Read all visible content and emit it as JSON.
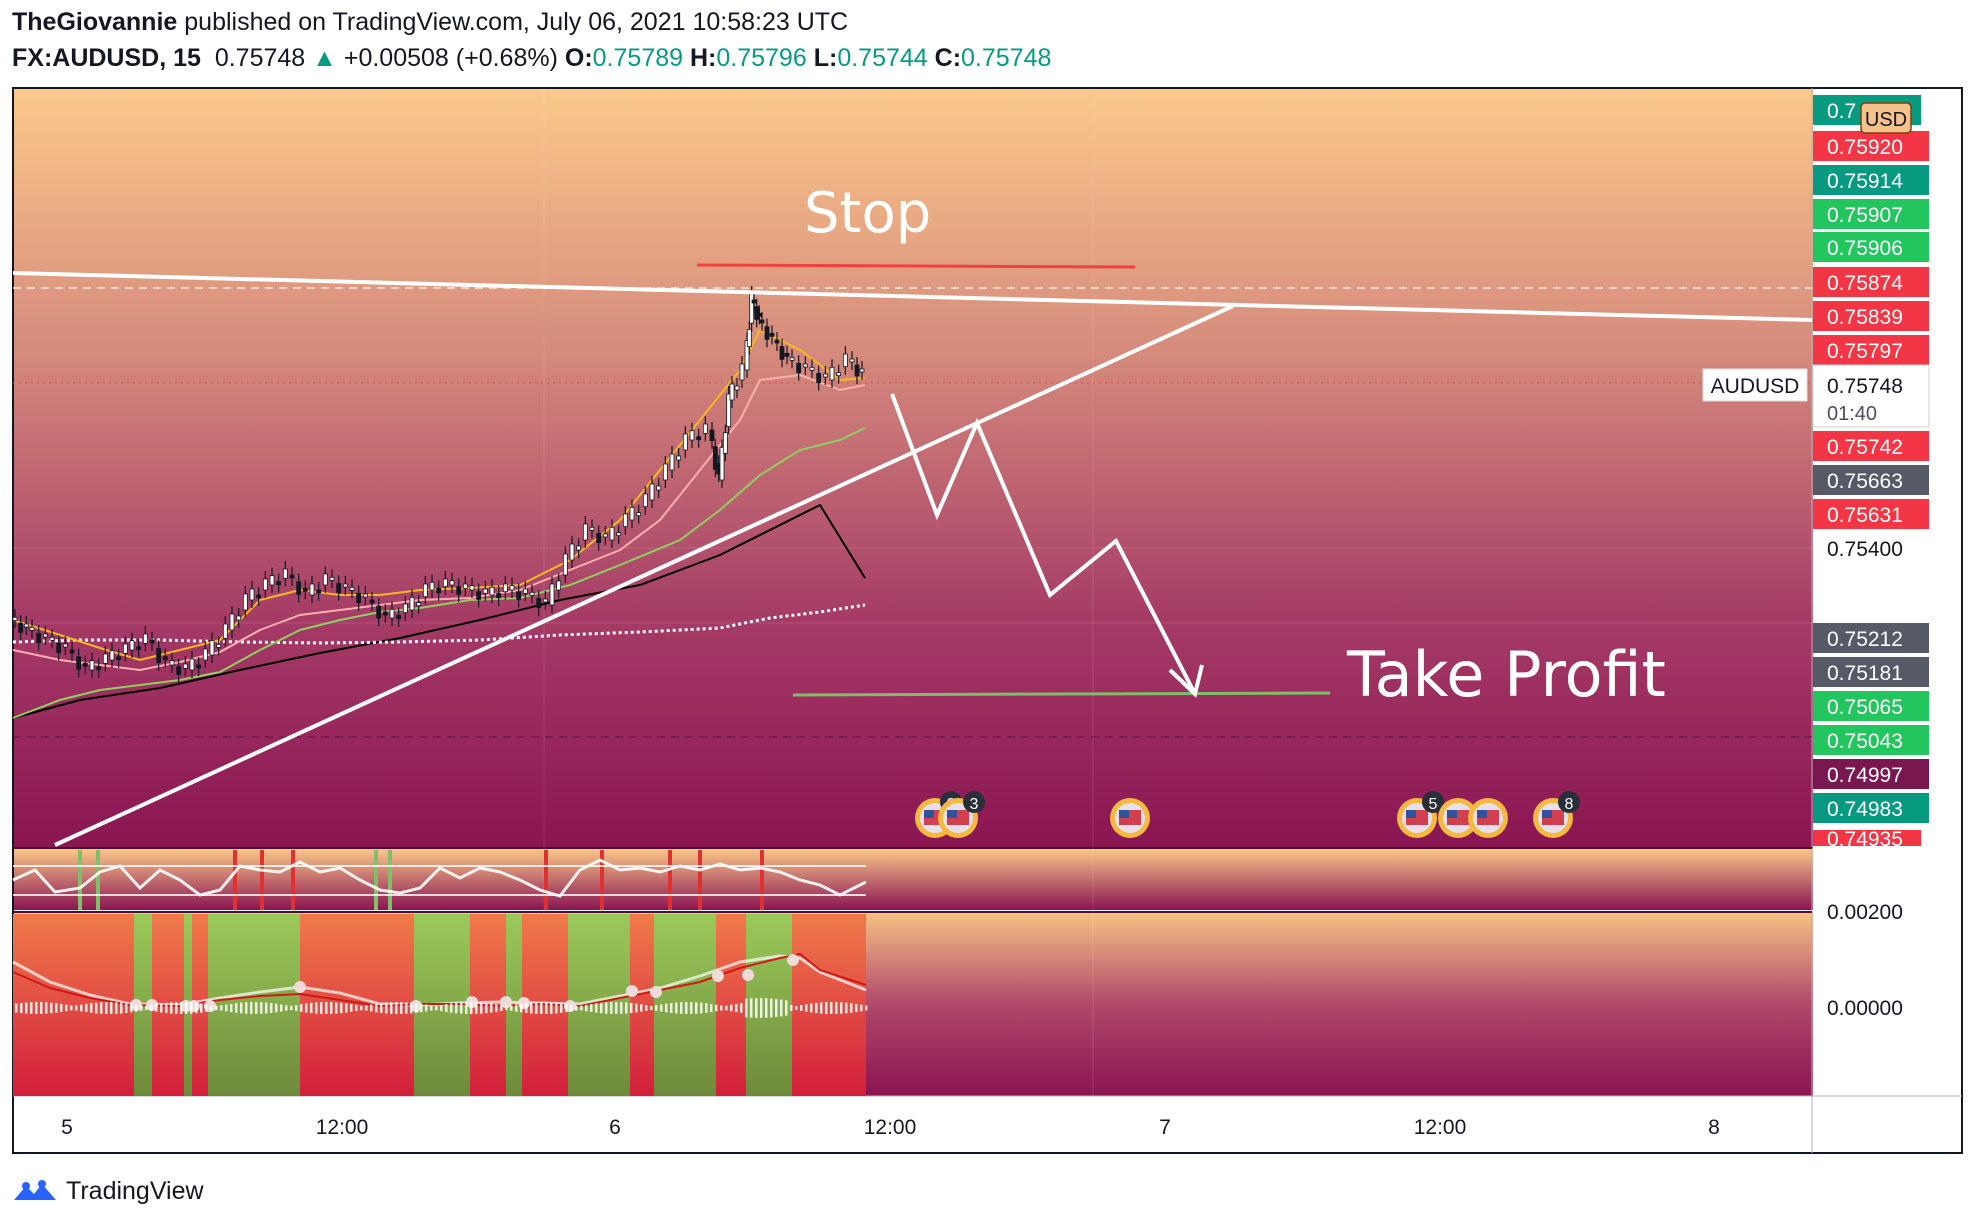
{
  "header": {
    "author": "TheGiovannie",
    "published_text": "published on TradingView.com, July 06, 2021 10:58:23 UTC",
    "symbol": "FX:AUDUSD, 15",
    "last": "0.75748",
    "change": "+0.00508 (+0.68%)",
    "open_label": "O:",
    "open": "0.75789",
    "high_label": "H:",
    "high": "0.75796",
    "low_label": "L:",
    "low": "0.75744",
    "close_label": "C:",
    "close": "0.75748"
  },
  "annotations": {
    "stop": "Stop",
    "take_profit": "Take Profit"
  },
  "price_axis": {
    "currency": "USD",
    "symbol_tag": "AUDUSD",
    "countdown": "01:40",
    "top_label_partial": "0.7",
    "bottom_label_partial": "0.74935",
    "labels": [
      {
        "text": "0.75920",
        "value": 0.7592,
        "color": "#f23645"
      },
      {
        "text": "0.75914",
        "value": 0.75914,
        "color": "#089981"
      },
      {
        "text": "0.75907",
        "value": 0.75907,
        "color": "#22c55e"
      },
      {
        "text": "0.75906",
        "value": 0.75906,
        "color": "#22c55e"
      },
      {
        "text": "0.75874",
        "value": 0.75874,
        "color": "#f23645"
      },
      {
        "text": "0.75839",
        "value": 0.75839,
        "color": "#f23645"
      },
      {
        "text": "0.75797",
        "value": 0.75797,
        "color": "#f23645"
      },
      {
        "text": "0.75742",
        "value": 0.75742,
        "color": "#f23645"
      },
      {
        "text": "0.75663",
        "value": 0.75663,
        "color": "#555a66"
      },
      {
        "text": "0.75631",
        "value": 0.75631,
        "color": "#f23645"
      },
      {
        "text": "0.75400",
        "value": 0.754,
        "color": ""
      },
      {
        "text": "0.75212",
        "value": 0.75212,
        "color": "#555a66"
      },
      {
        "text": "0.75181",
        "value": 0.75181,
        "color": "#555a66"
      },
      {
        "text": "0.75065",
        "value": 0.75065,
        "color": "#22c55e"
      },
      {
        "text": "0.75043",
        "value": 0.75043,
        "color": "#22c55e"
      },
      {
        "text": "0.74997",
        "value": 0.74997,
        "color": "#7a1650"
      },
      {
        "text": "0.74983",
        "value": 0.74983,
        "color": "#089981"
      }
    ],
    "indicator_labels": [
      "0.00200",
      "0.00000"
    ]
  },
  "time_axis": [
    "5",
    "12:00",
    "6",
    "12:00",
    "7",
    "12:00",
    "8"
  ],
  "events": [
    {
      "badge": "2"
    },
    {
      "badge": "3"
    },
    {
      "badge": ""
    },
    {
      "badge": "5"
    },
    {
      "badge": ""
    },
    {
      "badge": ""
    },
    {
      "badge": "8"
    }
  ],
  "footer": {
    "brand": "TradingView"
  },
  "colors": {
    "up": "#089981",
    "down": "#f23645",
    "bg_top": "#f8c887",
    "bg_bottom": "#8a1c58",
    "take_profit_line": "#7fbf6a",
    "stop_line": "#f23645"
  },
  "chart_data": {
    "type": "candlestick",
    "symbol": "FX:AUDUSD",
    "interval": "15",
    "x_ticks": [
      "5",
      "12:00",
      "6",
      "12:00",
      "7",
      "12:00",
      "8"
    ],
    "close_points": [
      {
        "x": "5",
        "y": 0.7522
      },
      {
        "x": "12:00",
        "y": 0.7535
      },
      {
        "x": "6",
        "y": 0.753
      },
      {
        "x": "6 07:00",
        "y": 0.7572
      },
      {
        "x": "6 08:30",
        "y": 0.7588
      },
      {
        "x": "6 10:58",
        "y": 0.75748
      }
    ],
    "annotations": [
      {
        "label": "Stop",
        "y": 0.759
      },
      {
        "label": "Take Profit",
        "y": 0.7513
      }
    ],
    "indicator_zero": 0.0,
    "indicator_level": 0.002
  }
}
